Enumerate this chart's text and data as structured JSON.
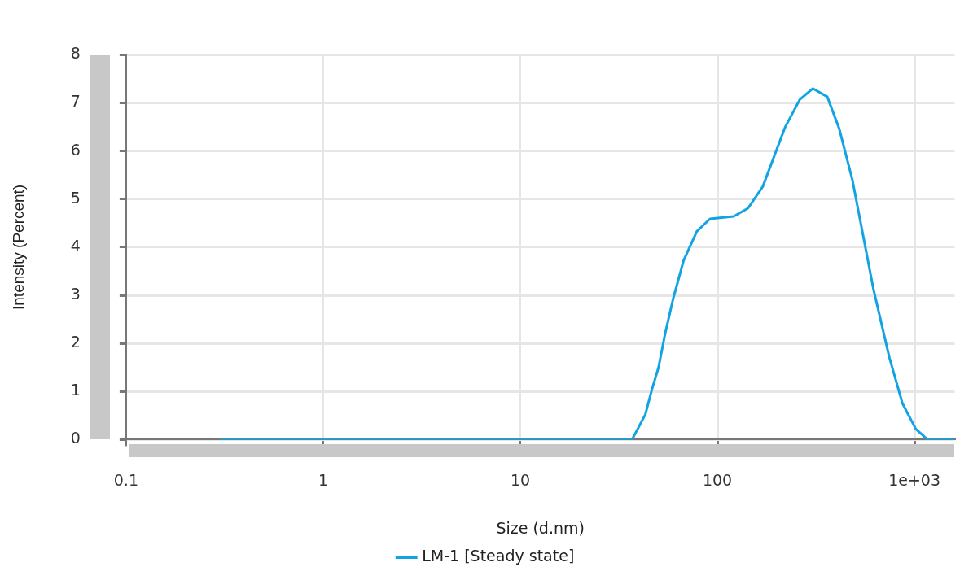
{
  "chart_data": {
    "type": "line",
    "xlabel": "Size (d.nm)",
    "ylabel": "Intensity (Percent)",
    "log": "x",
    "xlim": [
      0.1,
      1600
    ],
    "xticks": [
      0.1,
      1,
      10,
      100,
      {
        "value": 1000,
        "label": "1e+03"
      }
    ],
    "ylim": [
      0,
      8
    ],
    "yticks": [
      0,
      1,
      2,
      3,
      4,
      5,
      6,
      7,
      8
    ],
    "grid": true,
    "legend": "bottom",
    "marker": "none",
    "line_style": "solid",
    "series": [
      {
        "name": "LM-1 [Steady state]",
        "color": "#12a3e3",
        "x": [
          0.3,
          36.9,
          43.1,
          46.6,
          50.3,
          54.3,
          59.6,
          67.4,
          78.7,
          91.8,
          121,
          143,
          170,
          221,
          262,
          305,
          361,
          415,
          485,
          620,
          746,
          870,
          1016,
          1167,
          1600
        ],
        "values": [
          0,
          0,
          0.52,
          1.05,
          1.5,
          2.2,
          2.92,
          3.72,
          4.33,
          4.59,
          4.64,
          4.81,
          5.26,
          6.5,
          7.07,
          7.3,
          7.13,
          6.47,
          5.39,
          3.12,
          1.71,
          0.75,
          0.22,
          0,
          0
        ]
      }
    ]
  }
}
